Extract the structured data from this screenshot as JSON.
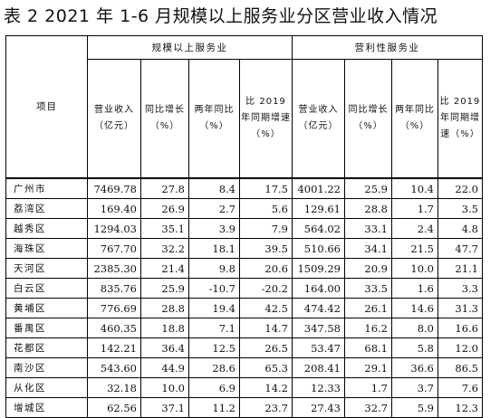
{
  "title": "表 2    2021 年 1-6 月规模以上服务业分区营业收入情况",
  "headers": {
    "item": "项目",
    "group_left": "规模以上服务业",
    "group_right": "营利性服务业",
    "cols": [
      "营业收入（亿元）",
      "同比增长（%）",
      "两年同比（%）",
      "比 2019 年同期增速（%）",
      "营业收入（亿元）",
      "同比增长（%）",
      "两年同比（%）",
      "比 2019 年同期增速（%）"
    ]
  },
  "rows": [
    {
      "name": "广州市",
      "values": [
        "7469.78",
        "27.8",
        "8.4",
        "17.5",
        "4001.22",
        "25.9",
        "10.4",
        "22.0"
      ]
    },
    {
      "name": "荔湾区",
      "values": [
        "169.40",
        "26.9",
        "2.7",
        "5.6",
        "129.61",
        "28.8",
        "1.7",
        "3.5"
      ]
    },
    {
      "name": "越秀区",
      "values": [
        "1294.03",
        "35.1",
        "3.9",
        "7.9",
        "564.02",
        "33.1",
        "2.4",
        "4.8"
      ]
    },
    {
      "name": "海珠区",
      "values": [
        "767.70",
        "32.2",
        "18.1",
        "39.5",
        "510.66",
        "34.1",
        "21.5",
        "47.7"
      ]
    },
    {
      "name": "天河区",
      "values": [
        "2385.30",
        "21.4",
        "9.8",
        "20.6",
        "1509.29",
        "20.9",
        "10.0",
        "21.1"
      ]
    },
    {
      "name": "白云区",
      "values": [
        "835.76",
        "25.9",
        "-10.7",
        "-20.2",
        "164.00",
        "33.5",
        "1.6",
        "3.3"
      ]
    },
    {
      "name": "黄埔区",
      "values": [
        "776.69",
        "28.8",
        "19.4",
        "42.5",
        "474.42",
        "26.1",
        "14.6",
        "31.3"
      ]
    },
    {
      "name": "番禺区",
      "values": [
        "460.35",
        "18.8",
        "7.1",
        "14.7",
        "347.58",
        "16.2",
        "8.0",
        "16.6"
      ]
    },
    {
      "name": "花都区",
      "values": [
        "142.21",
        "36.4",
        "12.5",
        "26.5",
        "53.47",
        "68.1",
        "5.8",
        "12.0"
      ]
    },
    {
      "name": "南沙区",
      "values": [
        "543.60",
        "44.9",
        "28.6",
        "65.3",
        "208.41",
        "29.1",
        "36.6",
        "86.5"
      ]
    },
    {
      "name": "从化区",
      "values": [
        "32.18",
        "10.0",
        "6.9",
        "14.2",
        "12.33",
        "1.7",
        "3.7",
        "7.6"
      ]
    },
    {
      "name": "增城区",
      "values": [
        "62.56",
        "37.1",
        "11.2",
        "23.7",
        "27.43",
        "32.7",
        "5.9",
        "12.3"
      ]
    }
  ]
}
